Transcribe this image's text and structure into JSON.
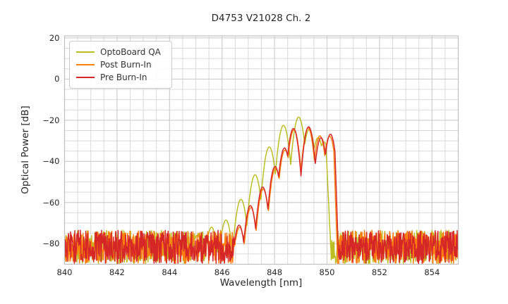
{
  "figure": {
    "title": "D4753 V21028 Ch. 2",
    "xlabel": "Wavelength [nm]",
    "ylabel": "Optical Power [dB]"
  },
  "chart_data": {
    "type": "line",
    "title": "D4753 V21028 Ch. 2",
    "xlabel": "Wavelength [nm]",
    "ylabel": "Optical Power [dB]",
    "xlim": [
      840,
      855
    ],
    "ylim": [
      -90,
      21
    ],
    "x_ticks": [
      840,
      842,
      844,
      846,
      848,
      850,
      852,
      854
    ],
    "y_ticks": [
      20,
      0,
      -20,
      -40,
      -60,
      -80
    ],
    "minor_grid_x_step": 0.5,
    "minor_grid_y_step": 5,
    "grid": true,
    "legend_position": "upper left",
    "series": [
      {
        "name": "OptoBoard QA",
        "color": "#bcbd22",
        "width_a": 2.5,
        "peaks": [
          [
            845.05,
            -76
          ],
          [
            845.6,
            -72
          ],
          [
            846.15,
            -68.5
          ],
          [
            846.72,
            -58.5
          ],
          [
            847.26,
            -46.5
          ],
          [
            847.8,
            -33
          ],
          [
            848.34,
            -22.5
          ],
          [
            848.92,
            -18.5
          ],
          [
            849.32,
            -24.5
          ],
          [
            849.66,
            -28.5
          ],
          [
            849.88,
            -30.5
          ]
        ],
        "cutoff": {
          "start": 849.95,
          "level": -29,
          "slope": 280
        },
        "noise_regions": [
          [
            840,
            846.45
          ],
          [
            850.05,
            855
          ]
        ],
        "noise_range": [
          -89.8,
          -73.5
        ]
      },
      {
        "name": "Post Burn-In",
        "color": "#ff7f0e",
        "width_a": 2.8,
        "peaks": [
          [
            846.67,
            -72
          ],
          [
            847.1,
            -62.5
          ],
          [
            847.57,
            -53.5
          ],
          [
            848.04,
            -43.5
          ],
          [
            848.4,
            -34.5
          ],
          [
            848.74,
            -24.6
          ],
          [
            849.28,
            -23.8
          ],
          [
            849.73,
            -27.6
          ],
          [
            850.1,
            -27.8
          ]
        ],
        "cutoff": {
          "start": 850.24,
          "level": -27,
          "slope": 380
        },
        "noise_regions": [
          [
            840,
            846.9
          ],
          [
            850.45,
            855
          ]
        ],
        "noise_range": [
          -89.8,
          -73.5
        ]
      },
      {
        "name": "Pre Burn-In",
        "color": "#d62728",
        "width_a": 2.8,
        "peaks": [
          [
            846.65,
            -71
          ],
          [
            847.08,
            -61.5
          ],
          [
            847.55,
            -52.5
          ],
          [
            848.02,
            -42.5
          ],
          [
            848.38,
            -33.5
          ],
          [
            848.72,
            -24.0
          ],
          [
            849.3,
            -23.2
          ],
          [
            849.77,
            -28.5
          ],
          [
            850.13,
            -26.8
          ]
        ],
        "cutoff": {
          "start": 850.28,
          "level": -26.5,
          "slope": 380
        },
        "noise_regions": [
          [
            840,
            846.95
          ],
          [
            850.4,
            855
          ]
        ],
        "noise_range": [
          -89.8,
          -73.5
        ]
      }
    ]
  }
}
